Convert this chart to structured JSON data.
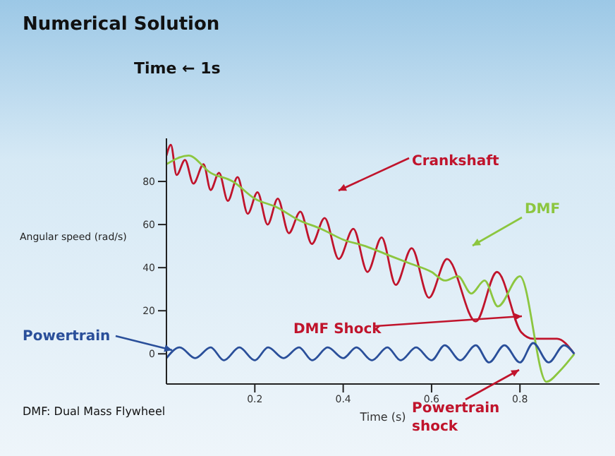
{
  "chart_data": {
    "type": "line",
    "title": "Numerical Solution",
    "subtitle": "Time ← 1s",
    "xlabel": "Time (s)",
    "ylabel": "Angular speed (rad/s)",
    "xlim": [
      0,
      0.98
    ],
    "xticks": [
      0.2,
      0.4,
      0.6,
      0.8
    ],
    "ylim": [
      -14,
      100
    ],
    "yticks": [
      0,
      20,
      40,
      60,
      80
    ],
    "marker": "none",
    "line_style": "solid",
    "series": [
      {
        "name": "Crankshaft",
        "color": "#c0142c",
        "x": [
          0,
          0.01,
          0.023,
          0.042,
          0.061,
          0.084,
          0.1,
          0.119,
          0.139,
          0.161,
          0.184,
          0.206,
          0.229,
          0.252,
          0.277,
          0.303,
          0.329,
          0.358,
          0.39,
          0.423,
          0.455,
          0.487,
          0.519,
          0.555,
          0.594,
          0.635,
          0.7,
          0.748,
          0.803,
          0.83,
          0.884,
          0.923
        ],
        "values": [
          92,
          97,
          83,
          90,
          79,
          88,
          76,
          84,
          71,
          82,
          65,
          75,
          60,
          72,
          56,
          66,
          51,
          63,
          44,
          58,
          38,
          54,
          32,
          49,
          26,
          44,
          15,
          38,
          10,
          7,
          7,
          0
        ]
      },
      {
        "name": "DMF",
        "color": "#8cc63f",
        "x": [
          0,
          0.05,
          0.1,
          0.15,
          0.2,
          0.25,
          0.3,
          0.35,
          0.4,
          0.45,
          0.5,
          0.55,
          0.6,
          0.63,
          0.66,
          0.69,
          0.72,
          0.75,
          0.8,
          0.86,
          0.89,
          0.923
        ],
        "values": [
          88,
          92,
          84,
          80,
          72,
          68,
          62,
          58,
          53,
          50,
          46,
          42,
          38,
          34,
          36,
          28,
          34,
          22,
          36,
          -13,
          -8,
          0
        ]
      },
      {
        "name": "Powertrain",
        "color": "#2a4f9a",
        "x": [
          0,
          0.03,
          0.065,
          0.1,
          0.13,
          0.165,
          0.2,
          0.23,
          0.265,
          0.3,
          0.33,
          0.365,
          0.4,
          0.43,
          0.465,
          0.5,
          0.53,
          0.565,
          0.6,
          0.63,
          0.665,
          0.7,
          0.73,
          0.765,
          0.8,
          0.83,
          0.865,
          0.9,
          0.923
        ],
        "values": [
          -2,
          3,
          -2,
          3,
          -3,
          3,
          -3,
          3,
          -2,
          3,
          -3,
          3,
          -2,
          3,
          -3,
          3,
          -3,
          3,
          -3,
          4,
          -3,
          4,
          -4,
          4,
          -4,
          5,
          -4,
          4,
          0
        ]
      }
    ],
    "annotations": [
      "DMF Shock",
      "Powertrain shock",
      "DMF: Dual Mass Flywheel"
    ]
  }
}
